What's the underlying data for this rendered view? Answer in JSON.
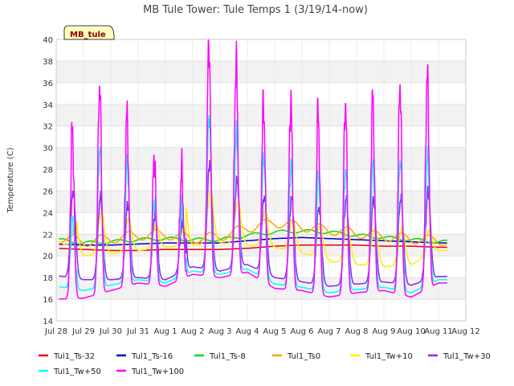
{
  "chart_data": {
    "type": "line",
    "title": "MB Tule Tower: Tule Temps 1 (3/19/14-now)",
    "xlabel": "",
    "ylabel": "Temperature (C)",
    "ylim": [
      14,
      40
    ],
    "yticks": [
      14,
      16,
      18,
      20,
      22,
      24,
      26,
      28,
      30,
      32,
      34,
      36,
      38,
      40
    ],
    "xlim": [
      0,
      15
    ],
    "xtick_labels": [
      "Jul 28",
      "Jul 29",
      "Jul 30",
      "Jul 31",
      "Aug 1",
      "Aug 2",
      "Aug 3",
      "Aug 4",
      "Aug 5",
      "Aug 6",
      "Aug 7",
      "Aug 8",
      "Aug 9",
      "Aug 10",
      "Aug 11",
      "Aug 12"
    ],
    "xtick_positions": [
      0,
      1,
      2,
      3,
      4,
      5,
      6,
      7,
      8,
      9,
      10,
      11,
      12,
      13,
      14,
      15
    ],
    "grid": true,
    "legend_position": "bottom",
    "badge": "MB_tule",
    "day_peaks": {
      "tw100": [
        31.8,
        35.9,
        33.1,
        29.2,
        28.0,
        39.8,
        38.1,
        34.1,
        34.3,
        33.3,
        34.1,
        34.7,
        35.8,
        36.8
      ],
      "tw50": [
        23.5,
        30.0,
        28.6,
        25.2,
        24.5,
        33.0,
        31.5,
        29.2,
        28.3,
        27.5,
        27.9,
        28.5,
        28.9,
        29.3
      ],
      "tw30": [
        26.0,
        25.5,
        24.8,
        23.8,
        23.0,
        28.6,
        27.0,
        25.5,
        25.3,
        24.5,
        25.3,
        25.3,
        25.4,
        26.0
      ],
      "tw10": [
        22.5,
        24.0,
        23.5,
        22.8,
        22.5,
        26.0,
        25.0,
        24.2,
        23.2,
        22.8,
        22.6,
        22.5,
        22.5,
        22.4
      ],
      "tw100_min": [
        16.0,
        16.1,
        16.8,
        17.5,
        17.2,
        18.3,
        18.0,
        18.5,
        17.0,
        16.8,
        16.2,
        16.6,
        16.8,
        16.2,
        17.5
      ],
      "tw50_min": [
        17.2,
        16.8,
        17.3,
        17.8,
        17.5,
        18.6,
        18.3,
        18.8,
        17.4,
        17.1,
        16.6,
        16.9,
        17.1,
        16.6,
        17.8
      ],
      "tw30_min": [
        18.2,
        17.8,
        17.8,
        18.0,
        17.8,
        19.0,
        18.6,
        19.2,
        18.0,
        17.6,
        17.2,
        17.4,
        17.6,
        17.3,
        18.1
      ],
      "tw10_min": [
        21.5,
        20.0,
        20.2,
        20.5,
        20.8,
        21.0,
        21.2,
        21.0,
        20.8,
        20.3,
        19.5,
        19.2,
        19.0,
        19.2,
        20.5
      ]
    },
    "series": [
      {
        "name": "Tul1_Ts-32",
        "color": "#ee0000",
        "values": [
          20.7,
          20.6,
          20.5,
          20.5,
          20.6,
          20.6,
          20.6,
          20.7,
          20.9,
          21.0,
          21.0,
          21.0,
          20.9,
          20.9,
          20.8
        ]
      },
      {
        "name": "Tul1_Ts-16",
        "color": "#0000cc",
        "values": [
          21.1,
          21.0,
          21.0,
          21.1,
          21.2,
          21.2,
          21.2,
          21.4,
          21.6,
          21.7,
          21.6,
          21.5,
          21.4,
          21.3,
          21.2
        ]
      },
      {
        "name": "Tul1_Ts-8",
        "color": "#00dd00",
        "values": [
          21.5,
          21.2,
          21.3,
          21.5,
          21.6,
          21.5,
          21.5,
          21.9,
          22.2,
          22.3,
          22.2,
          21.9,
          21.7,
          21.5,
          21.3
        ]
      },
      {
        "name": "Tul1_Ts0",
        "color": "#ffa500",
        "values": [
          21.8,
          21.3,
          21.6,
          21.9,
          22.0,
          21.6,
          21.8,
          22.6,
          23.1,
          22.7,
          22.4,
          22.1,
          21.8,
          21.6,
          21.4
        ]
      },
      {
        "name": "Tul1_Tw+10",
        "color": "#ffee00"
      },
      {
        "name": "Tul1_Tw+30",
        "color": "#8a2be2"
      },
      {
        "name": "Tul1_Tw+50",
        "color": "#00ffff"
      },
      {
        "name": "Tul1_Tw+100",
        "color": "#ff00ff"
      }
    ]
  }
}
